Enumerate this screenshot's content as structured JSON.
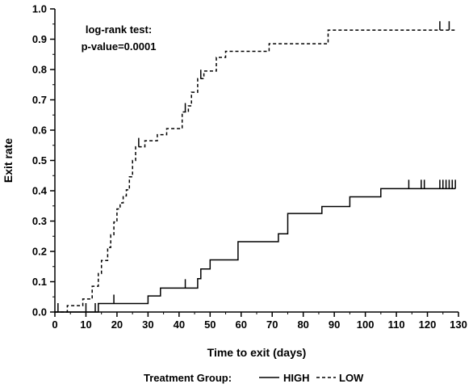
{
  "chart_data": {
    "type": "line",
    "step": true,
    "ylabel": "Exit rate",
    "xlabel": "Time to exit (days)",
    "xlim": [
      0,
      130
    ],
    "ylim": [
      0,
      1.0
    ],
    "xticks": [
      "0",
      "10",
      "20",
      "30",
      "40",
      "50",
      "60",
      "70",
      "80",
      "90",
      "100",
      "110",
      "120",
      "130"
    ],
    "yticks": [
      "0.0",
      "0.1",
      "0.2",
      "0.3",
      "0.4",
      "0.5",
      "0.6",
      "0.7",
      "0.8",
      "0.9",
      "1.0"
    ],
    "annotation": [
      "log-rank test:",
      "p-value=0.0001"
    ],
    "legend": {
      "title": "Treatment Group:",
      "position": "bottom",
      "entries": [
        {
          "name": "HIGH",
          "style": "solid"
        },
        {
          "name": "LOW",
          "style": "dashed"
        }
      ]
    },
    "series": [
      {
        "name": "HIGH",
        "style": "solid",
        "color": "#000000",
        "points": [
          [
            0,
            0
          ],
          [
            14,
            0
          ],
          [
            14,
            0.028
          ],
          [
            30,
            0.028
          ],
          [
            30,
            0.053
          ],
          [
            34,
            0.053
          ],
          [
            34,
            0.079
          ],
          [
            46,
            0.079
          ],
          [
            46,
            0.11
          ],
          [
            47,
            0.11
          ],
          [
            47,
            0.142
          ],
          [
            50,
            0.142
          ],
          [
            50,
            0.172
          ],
          [
            59,
            0.172
          ],
          [
            59,
            0.232
          ],
          [
            72,
            0.232
          ],
          [
            72,
            0.258
          ],
          [
            75,
            0.258
          ],
          [
            75,
            0.325
          ],
          [
            86,
            0.325
          ],
          [
            86,
            0.348
          ],
          [
            95,
            0.348
          ],
          [
            95,
            0.38
          ],
          [
            105,
            0.38
          ],
          [
            105,
            0.407
          ],
          [
            129,
            0.407
          ]
        ],
        "censor_x": [
          1,
          10,
          13,
          19,
          42,
          114,
          118,
          119,
          124,
          125,
          126,
          127,
          128,
          129
        ]
      },
      {
        "name": "LOW",
        "style": "dashed",
        "color": "#000000",
        "points": [
          [
            0,
            0
          ],
          [
            4,
            0
          ],
          [
            4,
            0.021
          ],
          [
            9,
            0.021
          ],
          [
            9,
            0.043
          ],
          [
            12,
            0.043
          ],
          [
            12,
            0.085
          ],
          [
            14,
            0.085
          ],
          [
            14,
            0.127
          ],
          [
            15,
            0.127
          ],
          [
            15,
            0.17
          ],
          [
            17,
            0.17
          ],
          [
            17,
            0.213
          ],
          [
            18,
            0.213
          ],
          [
            18,
            0.255
          ],
          [
            19,
            0.255
          ],
          [
            19,
            0.297
          ],
          [
            20,
            0.297
          ],
          [
            20,
            0.34
          ],
          [
            21,
            0.34
          ],
          [
            21,
            0.36
          ],
          [
            22,
            0.36
          ],
          [
            22,
            0.383
          ],
          [
            23,
            0.383
          ],
          [
            23,
            0.403
          ],
          [
            24,
            0.403
          ],
          [
            24,
            0.446
          ],
          [
            25,
            0.446
          ],
          [
            25,
            0.5
          ],
          [
            26,
            0.5
          ],
          [
            26,
            0.545
          ],
          [
            29,
            0.545
          ],
          [
            29,
            0.565
          ],
          [
            33,
            0.565
          ],
          [
            33,
            0.585
          ],
          [
            36,
            0.585
          ],
          [
            36,
            0.605
          ],
          [
            41,
            0.605
          ],
          [
            41,
            0.66
          ],
          [
            43,
            0.66
          ],
          [
            43,
            0.68
          ],
          [
            44,
            0.68
          ],
          [
            44,
            0.725
          ],
          [
            46,
            0.725
          ],
          [
            46,
            0.77
          ],
          [
            48,
            0.77
          ],
          [
            48,
            0.795
          ],
          [
            52,
            0.795
          ],
          [
            52,
            0.84
          ],
          [
            55,
            0.84
          ],
          [
            55,
            0.86
          ],
          [
            69,
            0.86
          ],
          [
            69,
            0.885
          ],
          [
            88,
            0.885
          ],
          [
            88,
            0.93
          ],
          [
            129,
            0.93
          ]
        ],
        "censor_x": [
          27,
          42,
          47,
          124,
          127
        ]
      }
    ]
  }
}
